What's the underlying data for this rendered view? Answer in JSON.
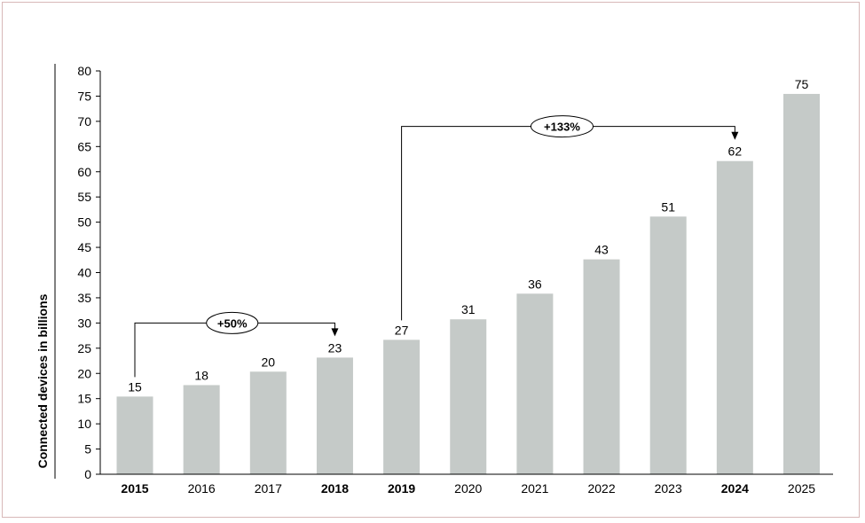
{
  "chart_data": {
    "type": "bar",
    "categories": [
      "2015",
      "2016",
      "2017",
      "2018",
      "2019",
      "2020",
      "2021",
      "2022",
      "2023",
      "2024",
      "2025"
    ],
    "bold_categories": [
      "2015",
      "2018",
      "2019",
      "2024"
    ],
    "values": [
      15.41,
      17.68,
      20.35,
      23.14,
      26.66,
      30.73,
      35.82,
      42.62,
      51.11,
      62.12,
      75.44
    ],
    "data_labels": [
      "15",
      "18",
      "20",
      "23",
      "27",
      "31",
      "36",
      "43",
      "51",
      "62",
      "75"
    ],
    "ylabel": "Connected devices in billions",
    "ylim": [
      0,
      80
    ],
    "yticks": [
      0,
      5,
      10,
      15,
      20,
      25,
      30,
      35,
      40,
      45,
      50,
      55,
      60,
      65,
      70,
      75,
      80
    ],
    "grid": false,
    "bar_color": "#c5cac8",
    "annotations": [
      {
        "from": "2015",
        "to": "2018",
        "level": 30,
        "label": "+50%"
      },
      {
        "from": "2019",
        "to": "2024",
        "level": 69,
        "label": "+133%"
      }
    ]
  }
}
